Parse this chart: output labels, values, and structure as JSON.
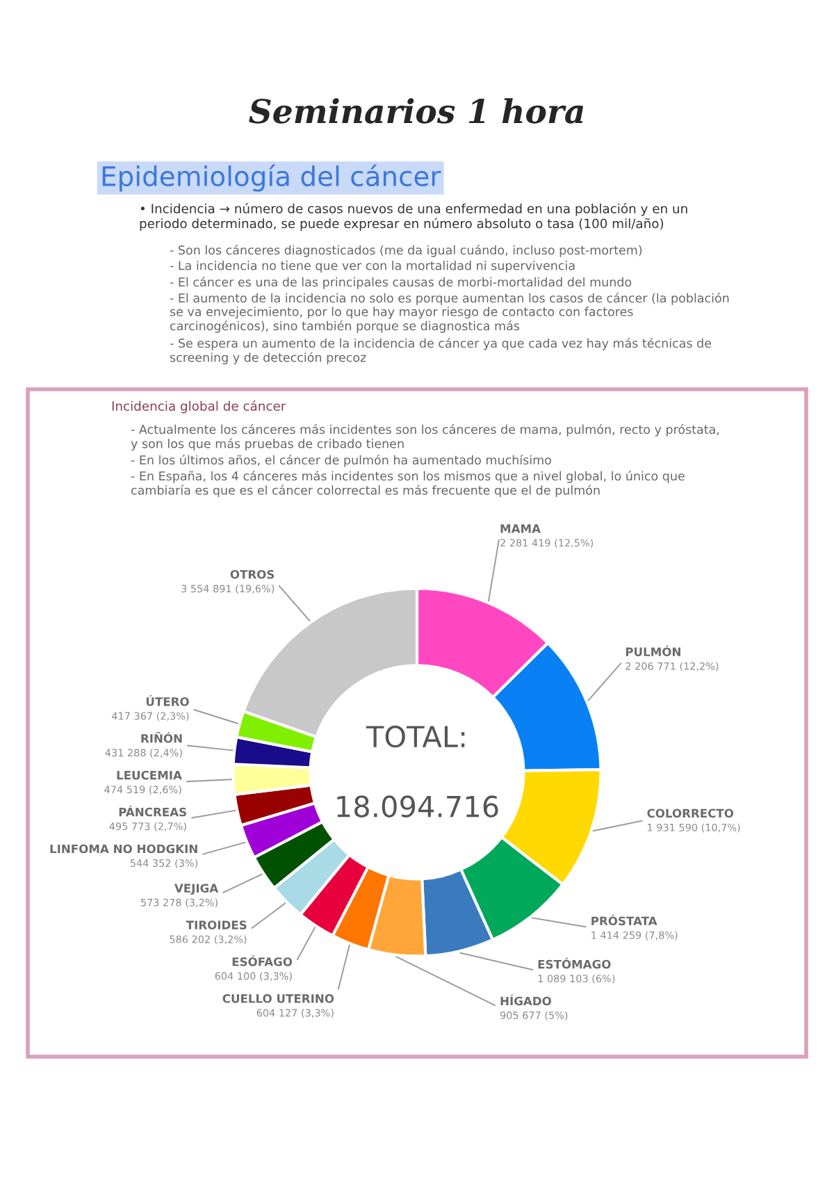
{
  "chart_data": {
    "type": "donut",
    "title": "Seminarios 1 hora",
    "subtitle": "Epidemiología del cáncer",
    "categories": [
      "MAMA",
      "PULMÓN",
      "COLORRECTO",
      "PRÓSTATA",
      "ESTÓMAGO",
      "HÍGADO",
      "CUELLO UTERINO",
      "ESÓFAGO",
      "TIROIDES",
      "VEJIGA",
      "LINFOMA NO HODGKIN",
      "PÁNCREAS",
      "LEUCEMIA",
      "RIÑÓN",
      "ÚTERO",
      "OTROS"
    ],
    "values": [
      2281419,
      2206771,
      1931590,
      1414259,
      1089103,
      905677,
      604127,
      604100,
      586202,
      573278,
      544352,
      495773,
      474519,
      431288,
      417367,
      3554891
    ],
    "value_labels": [
      "2 281 419 (12,5%)",
      "2 206 771 (12,2%)",
      "1 931 590 (10,7%)",
      "1 414 259 (7,8%)",
      "1 089 103 (6%)",
      "905 677 (5%)",
      "604 127 (3,3%)",
      "604 100 (3,3%)",
      "586 202 (3,2%)",
      "573 278 (3,2%)",
      "544 352 (3%)",
      "495 773 (2,7%)",
      "474 519 (2,6%)",
      "431 288 (2,4%)",
      "417 367 (2,3%)",
      "3 554 891 (19,6%)"
    ],
    "colors": [
      "#ff47c2",
      "#0a80f5",
      "#ffd900",
      "#00a85a",
      "#3a7bbf",
      "#ffa53a",
      "#ff7600",
      "#e8003c",
      "#a8dbe6",
      "#005200",
      "#a000d8",
      "#990000",
      "#ffff99",
      "#1a0a8c",
      "#80f000",
      "#c8c8c8"
    ],
    "annotations": [
      "• Incidencia → número de casos nuevos de una enfermedad en una población y en un periodo determinado, se puede expresar en número absoluto o tasa (100 mil/año)",
      "- Son los cánceres diagnosticados (me da igual cuándo, incluso post-mortem)",
      "- La incidencia no tiene que ver con la mortalidad ni supervivencia",
      "- El cáncer es una de las principales causas de morbi-mortalidad del mundo",
      "- El aumento de la incidencia no solo es porque aumentan los casos de cáncer (la población se va envejecimiento, por lo que hay mayor riesgo de contacto con factores carcinogénicos), sino también porque se diagnostica más",
      "- Se espera un aumento de la incidencia de cáncer ya que cada vez hay más técnicas de screening y de detección precoz",
      "Incidencia global de cáncer",
      "- Actualmente los cánceres más incidentes son los cánceres de mama, pulmón, recto y próstata, y son los que más pruebas de cribado tienen",
      "- En los últimos años, el cáncer de pulmón ha aumentado muchísimo",
      "- En España, los 4 cánceres más incidentes son los mismos que a nivel global, lo único que cambiaría es que es el cáncer colorrectal es más frecuente que el de pulmón",
      "TOTAL:",
      "18.094.716"
    ]
  }
}
